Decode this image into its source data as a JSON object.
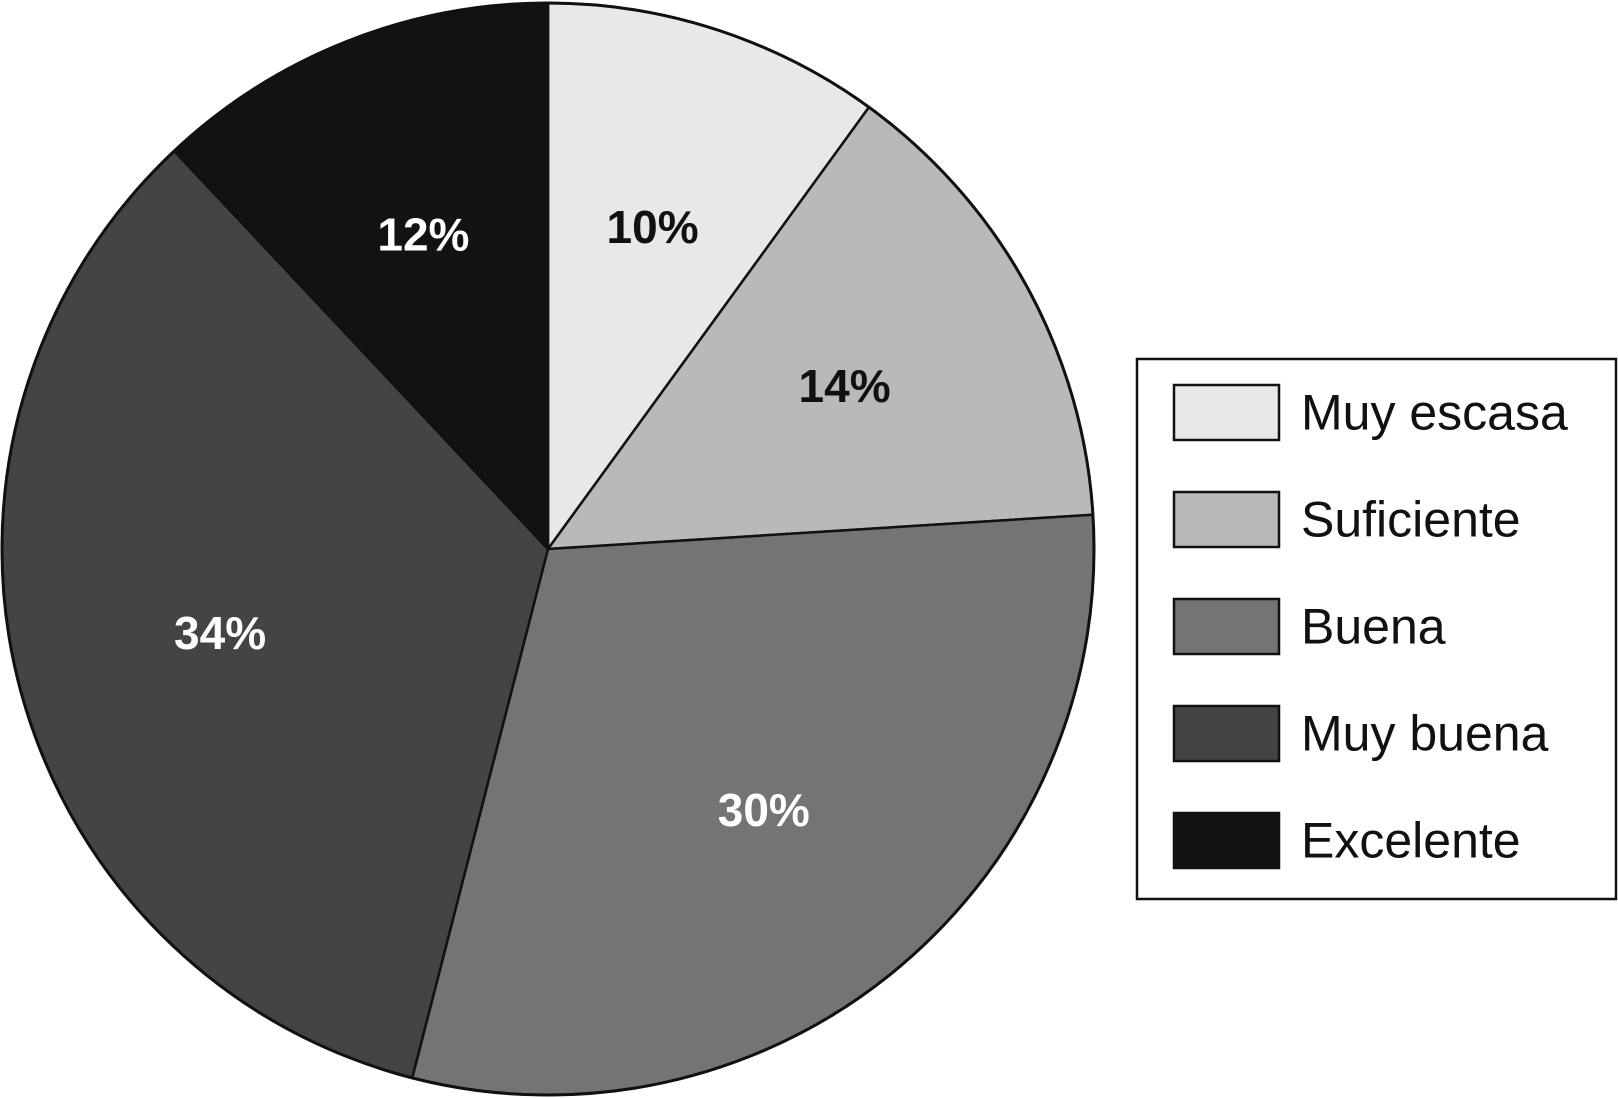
{
  "chart_data": {
    "type": "pie",
    "title": "",
    "start_angle_deg": 0,
    "direction": "clockwise",
    "legend_position": "right",
    "slices": [
      {
        "label": "Muy escasa",
        "value": 10,
        "display": "10%",
        "color": "#e8e8e8",
        "label_color": "#111111"
      },
      {
        "label": "Suficiente",
        "value": 14,
        "display": "14%",
        "color": "#b9b9b9",
        "label_color": "#111111"
      },
      {
        "label": "Buena",
        "value": 30,
        "display": "30%",
        "color": "#747474",
        "label_color": "#ffffff"
      },
      {
        "label": "Muy buena",
        "value": 34,
        "display": "34%",
        "color": "#444444",
        "label_color": "#ffffff"
      },
      {
        "label": "Excelente",
        "value": 12,
        "display": "12%",
        "color": "#121212",
        "label_color": "#ffffff"
      }
    ]
  }
}
